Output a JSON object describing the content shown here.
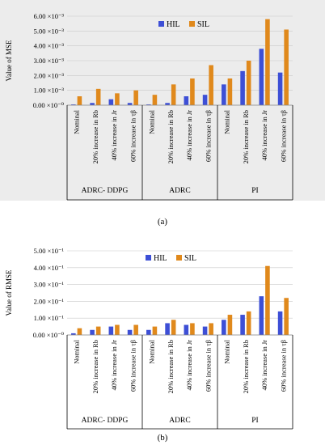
{
  "colors": {
    "hil": "#3d4fd6",
    "sil": "#e0891c",
    "plot_bg_a": "#ececec",
    "plot_bg_b": "#ffffff"
  },
  "chart_data": [
    {
      "type": "bar",
      "caption": "(a)",
      "ylabel": "Value of MSE",
      "ylim": [
        0,
        0.006
      ],
      "yticks": [
        "0.00 ×10⁻⁰",
        "1.00 ×10⁻³",
        "2.00 ×10⁻³",
        "3.00 ×10⁻³",
        "4.00 ×10⁻³",
        "5.00 ×10⁻³",
        "6.00 ×10⁻³"
      ],
      "grid": true,
      "legend": "top-center",
      "categories": [
        "Nominal",
        "20% increase in Rb",
        "40% increase in Jr",
        "60% increase in τβ",
        "Nominal",
        "20% increase in Rb",
        "40% increase in Jr",
        "60% increase in τβ",
        "Nominal",
        "20% increase in Rb",
        "40% increase in Jr",
        "60% increase in τβ"
      ],
      "groups": [
        "ADRC- DDPG",
        "ADRC",
        "PI"
      ],
      "series": [
        {
          "name": "HIL",
          "values": [
            5e-05,
            0.00015,
            0.0004,
            0.00015,
            5e-05,
            0.00015,
            0.0006,
            0.0007,
            0.0014,
            0.0023,
            0.0038,
            0.0022
          ]
        },
        {
          "name": "SIL",
          "values": [
            0.0006,
            0.0011,
            0.0008,
            0.001,
            0.0007,
            0.0014,
            0.0018,
            0.0027,
            0.0018,
            0.003,
            0.0058,
            0.0051
          ]
        }
      ]
    },
    {
      "type": "bar",
      "caption": "(b)",
      "ylabel": "Value of RMSE",
      "ylim": [
        0,
        0.5
      ],
      "yticks": [
        "0.00 ×10⁻⁰",
        "1.00 ×10⁻¹",
        "2.00 ×10⁻¹",
        "3.00 ×10⁻¹",
        "4.00 ×10⁻¹",
        "5.00 ×10⁻¹"
      ],
      "grid": true,
      "legend": "top-center",
      "categories": [
        "Nominal",
        "20% increase in Rb",
        "40% increase in Jr",
        "60% increase in τβ",
        "Nominal",
        "20% increase in Rb",
        "40% increase in Jr",
        "60% increase in τβ",
        "Nominal",
        "20% increase in Rb",
        "40% increase in Jr",
        "60% increase in τβ"
      ],
      "groups": [
        "ADRC- DDPG",
        "ADRC",
        "PI"
      ],
      "series": [
        {
          "name": "HIL",
          "values": [
            0.01,
            0.03,
            0.05,
            0.03,
            0.03,
            0.07,
            0.06,
            0.05,
            0.09,
            0.12,
            0.23,
            0.14
          ]
        },
        {
          "name": "SIL",
          "values": [
            0.04,
            0.05,
            0.06,
            0.06,
            0.05,
            0.09,
            0.07,
            0.07,
            0.12,
            0.14,
            0.41,
            0.22
          ]
        }
      ]
    }
  ]
}
